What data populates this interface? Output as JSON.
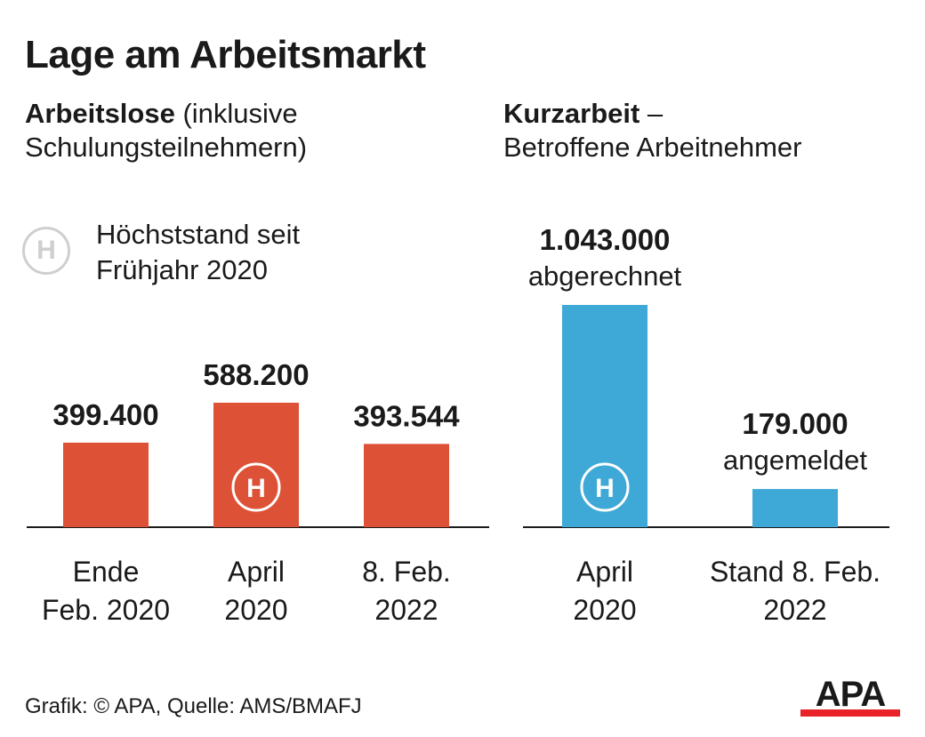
{
  "title": "Lage am Arbeitsmarkt",
  "colors": {
    "left_series": "#dd5236",
    "right_series": "#3ea8d6",
    "text": "#1a1a1a",
    "highlight_icon_legend": "#cfcfcf",
    "logo_red": "#e8232a"
  },
  "legend": {
    "icon_letter": "H",
    "text_line1": "Höchststand seit",
    "text_line2": "Frühjahr 2020"
  },
  "chart_data": [
    {
      "type": "bar",
      "title_bold": "Arbeitslose",
      "title_rest": " (inklusive",
      "title_line2": "Schulungsteilnehmern)",
      "categories": [
        [
          "Ende",
          "Feb. 2020"
        ],
        [
          "April",
          "2020"
        ],
        [
          "8. Feb.",
          "2022"
        ]
      ],
      "values": [
        399400,
        588200,
        393544
      ],
      "value_labels": [
        "399.400",
        "588.200",
        "393.544"
      ],
      "highlight_index": 1,
      "highlight_letter": "H"
    },
    {
      "type": "bar",
      "title_bold": "Kurzarbeit",
      "title_rest": " –",
      "title_line2": "Betroffene Arbeitnehmer",
      "categories": [
        [
          "April",
          "2020"
        ],
        [
          "Stand 8. Feb.",
          "2022"
        ]
      ],
      "values": [
        1043000,
        179000
      ],
      "value_labels": [
        "1.043.000",
        "179.000"
      ],
      "value_sublabels": [
        "abgerechnet",
        "angemeldet"
      ],
      "highlight_index": 0,
      "highlight_letter": "H"
    }
  ],
  "footer": "Grafik: © APA, Quelle: AMS/BMAFJ",
  "logo_text": "APA"
}
